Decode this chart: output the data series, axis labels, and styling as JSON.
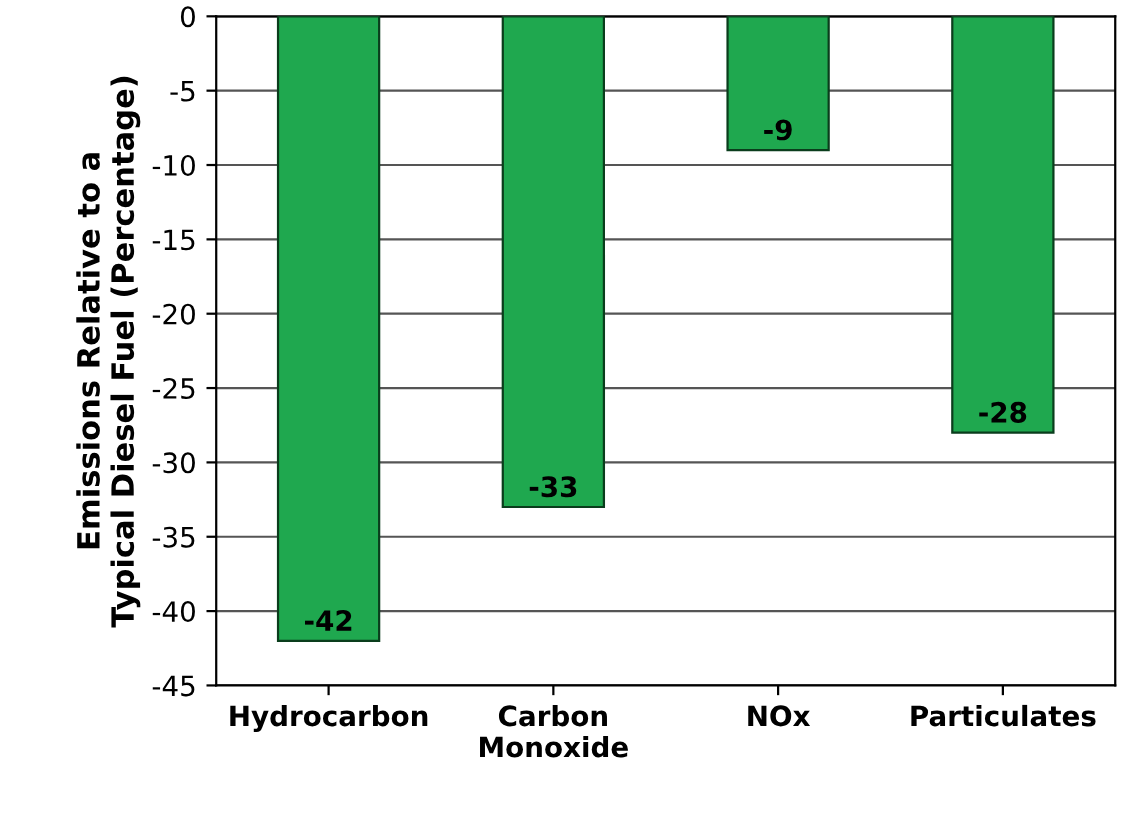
{
  "chart_data": {
    "type": "bar",
    "ylabel": "Emissions Relative to a\nTypical Diesel Fuel (Percentage)",
    "categories": [
      "Hydrocarbon",
      "Carbon\nMonoxide",
      "NOx",
      "Particulates"
    ],
    "values": [
      -42,
      -33,
      -9,
      -28
    ],
    "color": "#1fa84f",
    "ylim": [
      -45,
      0
    ],
    "yticks": [
      0,
      -5,
      -10,
      -15,
      -20,
      -25,
      -30,
      -35,
      -40,
      -45
    ],
    "grid": "y",
    "data_labels": true
  }
}
